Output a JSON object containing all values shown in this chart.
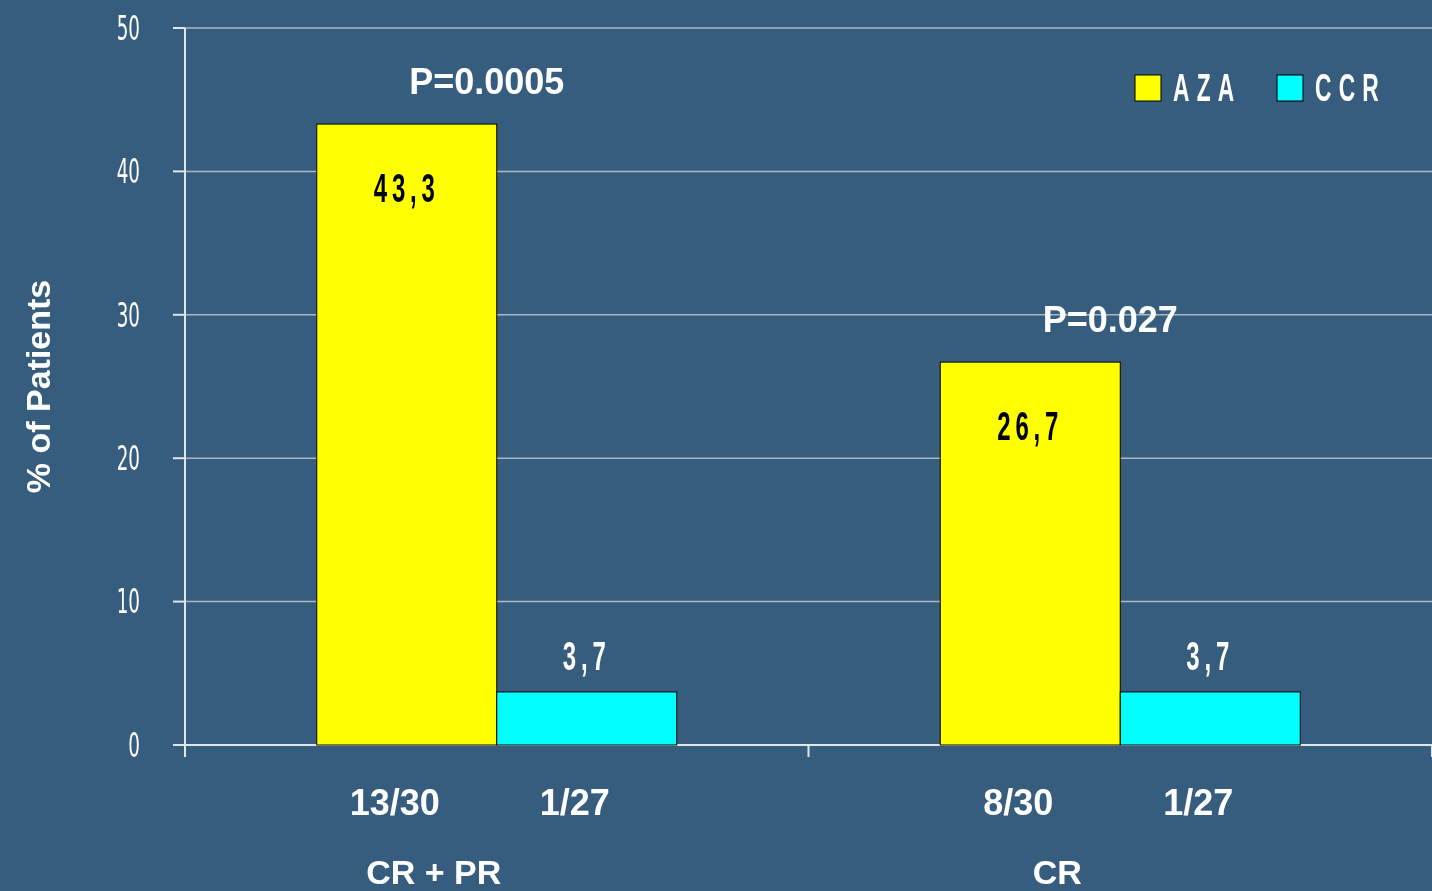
{
  "chart_data": {
    "type": "bar",
    "ylabel": "% of Patients",
    "categories": [
      "CR + PR",
      "CR"
    ],
    "series": [
      {
        "name": "AZA",
        "color": "#ffff00",
        "values": [
          43.3,
          26.7
        ],
        "value_labels": [
          "43,3",
          "26,7"
        ]
      },
      {
        "name": "CCR",
        "color": "#00ffff",
        "values": [
          3.7,
          3.7
        ],
        "value_labels": [
          "3,7",
          "3,7"
        ]
      }
    ],
    "ylim": [
      0,
      50
    ],
    "yticks": [
      0,
      10,
      20,
      30,
      40,
      50
    ],
    "grid": "y",
    "legend": "top right",
    "annotations": [
      "P=0.0005",
      "P=0.027",
      "13/30",
      "1/27",
      "8/30",
      "1/27"
    ]
  }
}
